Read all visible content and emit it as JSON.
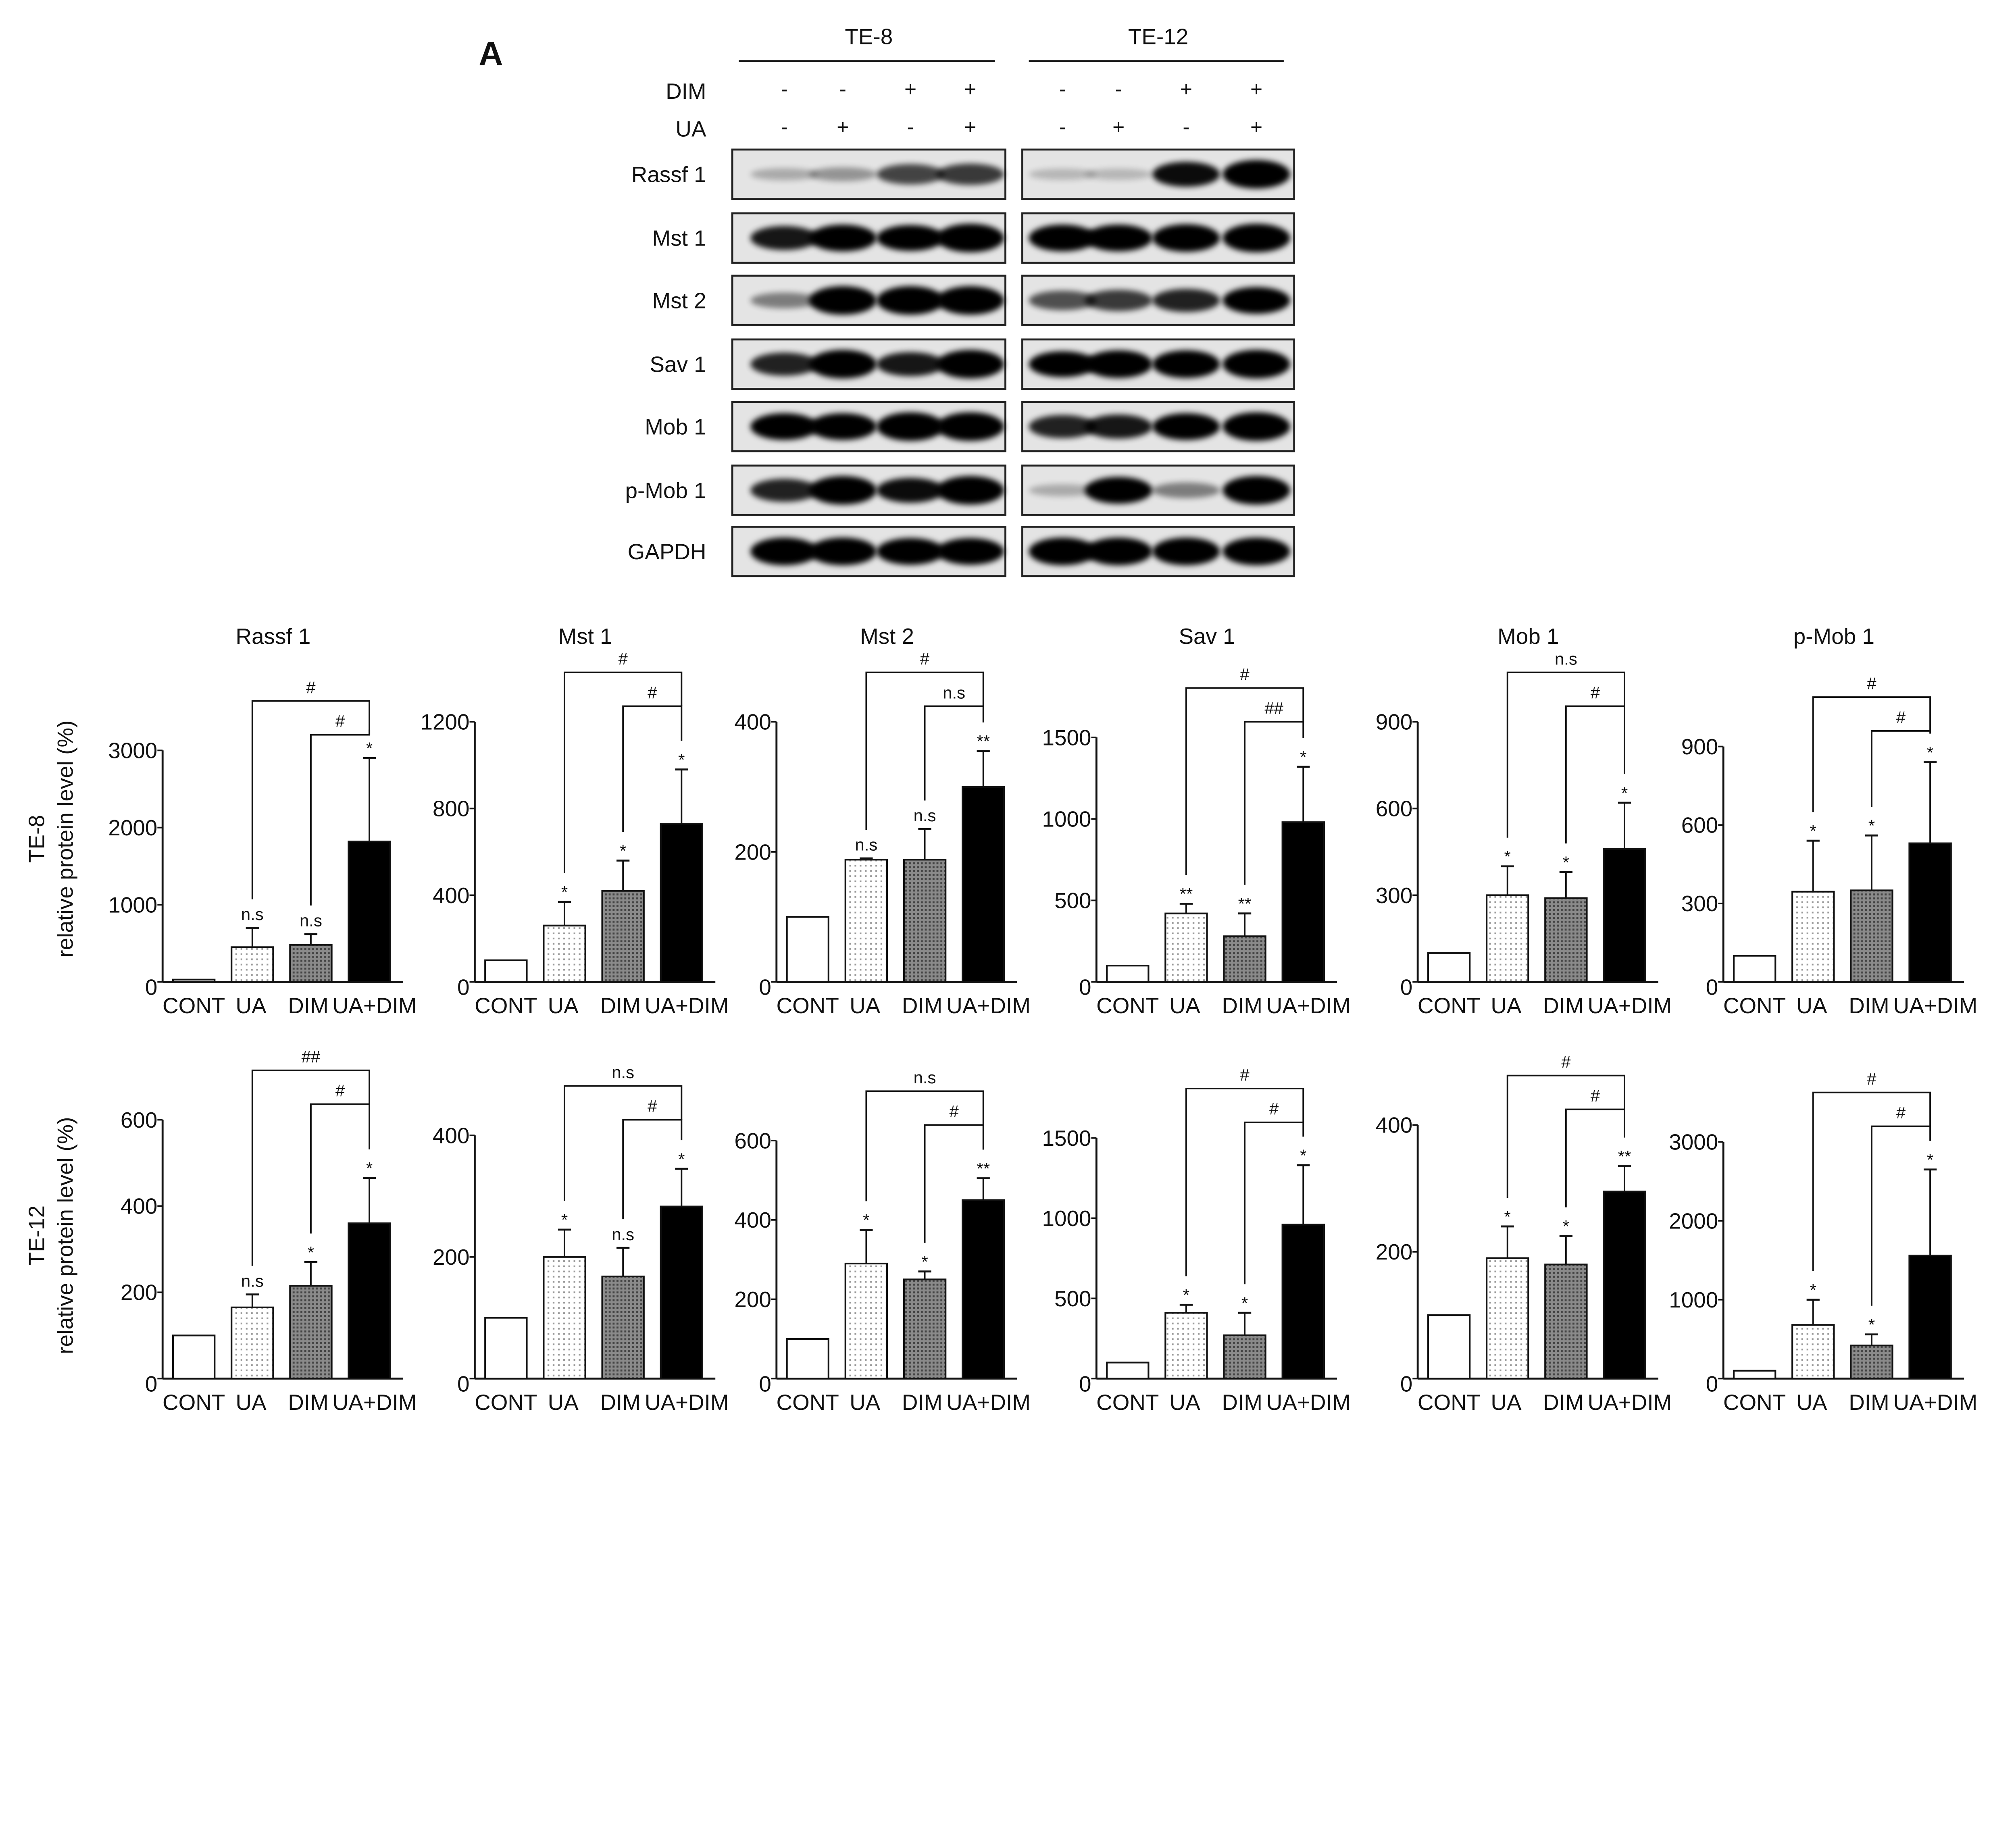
{
  "figure": {
    "panel_label": "A",
    "cell_lines": [
      "TE-8",
      "TE-12"
    ],
    "treatment_rows": [
      {
        "label": "DIM",
        "signs": [
          "-",
          "-",
          "+",
          "+",
          "-",
          "-",
          "+",
          "+"
        ]
      },
      {
        "label": "UA",
        "signs": [
          "-",
          "+",
          "-",
          "+",
          "-",
          "+",
          "-",
          "+"
        ]
      }
    ],
    "blot": {
      "rows": [
        {
          "label": "Rassf 1",
          "intensity": [
            0.1,
            0.2,
            0.55,
            0.6,
            0.05,
            0.05,
            0.8,
            1
          ]
        },
        {
          "label": "Mst 1",
          "intensity": [
            0.75,
            0.9,
            0.85,
            1,
            0.9,
            0.9,
            0.95,
            1
          ]
        },
        {
          "label": "Mst 2",
          "intensity": [
            0.3,
            1,
            1,
            1,
            0.5,
            0.6,
            0.7,
            0.9
          ]
        },
        {
          "label": "Sav 1",
          "intensity": [
            0.7,
            1,
            0.75,
            1,
            0.85,
            0.95,
            0.95,
            1
          ]
        },
        {
          "label": "Mob 1",
          "intensity": [
            0.9,
            0.9,
            1,
            1,
            0.7,
            0.75,
            0.9,
            1
          ]
        },
        {
          "label": "p-Mob 1",
          "intensity": [
            0.7,
            1,
            0.8,
            1,
            0.1,
            0.9,
            0.3,
            1
          ]
        },
        {
          "label": "GAPDH",
          "intensity": [
            0.95,
            0.95,
            0.9,
            0.9,
            0.95,
            0.95,
            0.95,
            0.95
          ]
        }
      ]
    },
    "row_ylabels": [
      {
        "line1": "TE-8",
        "line2": "relative protein level (%)"
      },
      {
        "line1": "TE-12",
        "line2": "relative protein level (%)"
      }
    ]
  },
  "chart_data": [
    {
      "type": "bar",
      "row": 0,
      "title": "Rassf 1",
      "categories": [
        "CONT",
        "UA",
        "DIM",
        "UA+DIM"
      ],
      "values": [
        30,
        450,
        480,
        1820
      ],
      "errors": [
        0,
        700,
        620,
        2900
      ],
      "ylim": [
        0,
        3000
      ],
      "yticks": [
        0,
        1000,
        2000,
        3000
      ],
      "bar_marks": [
        "",
        "n.s",
        "n.s",
        "*"
      ],
      "bracket_outer": "#",
      "bracket_inner": "#"
    },
    {
      "type": "bar",
      "row": 0,
      "title": "Mst 1",
      "categories": [
        "CONT",
        "UA",
        "DIM",
        "UA+DIM"
      ],
      "values": [
        100,
        260,
        420,
        730
      ],
      "errors": [
        0,
        370,
        560,
        980
      ],
      "ylim": [
        0,
        1200
      ],
      "yticks": [
        0,
        400,
        800,
        1200
      ],
      "bar_marks": [
        "",
        "*",
        "*",
        "*"
      ],
      "bracket_outer": "#",
      "bracket_inner": "#"
    },
    {
      "type": "bar",
      "row": 0,
      "title": "Mst 2",
      "categories": [
        "CONT",
        "UA",
        "DIM",
        "UA+DIM"
      ],
      "values": [
        100,
        188,
        188,
        300
      ],
      "errors": [
        0,
        190,
        235,
        355
      ],
      "ylim": [
        0,
        400
      ],
      "yticks": [
        0,
        200,
        400
      ],
      "bar_marks": [
        "",
        "n.s",
        "n.s",
        "**"
      ],
      "bracket_outer": "#",
      "bracket_inner": "n.s"
    },
    {
      "type": "bar",
      "row": 0,
      "title": "Sav 1",
      "categories": [
        "CONT",
        "UA",
        "DIM",
        "UA+DIM"
      ],
      "values": [
        100,
        420,
        280,
        980
      ],
      "errors": [
        0,
        480,
        420,
        1320
      ],
      "ylim": [
        0,
        1500
      ],
      "yticks": [
        0,
        500,
        1000,
        1500
      ],
      "bar_marks": [
        "",
        "**",
        "**",
        "*"
      ],
      "bracket_outer": "#",
      "bracket_inner": "##"
    },
    {
      "type": "bar",
      "row": 0,
      "title": "Mob 1",
      "categories": [
        "CONT",
        "UA",
        "DIM",
        "UA+DIM"
      ],
      "values": [
        100,
        300,
        290,
        460
      ],
      "errors": [
        0,
        400,
        380,
        620
      ],
      "ylim": [
        0,
        900
      ],
      "yticks": [
        0,
        300,
        600,
        900
      ],
      "bar_marks": [
        "",
        "*",
        "*",
        "*"
      ],
      "bracket_outer": "n.s",
      "bracket_inner": "#"
    },
    {
      "type": "bar",
      "row": 0,
      "title": "p-Mob 1",
      "categories": [
        "CONT",
        "UA",
        "DIM",
        "UA+DIM"
      ],
      "values": [
        100,
        345,
        350,
        530
      ],
      "errors": [
        0,
        540,
        560,
        840
      ],
      "ylim": [
        0,
        900
      ],
      "yticks": [
        0,
        300,
        600,
        900
      ],
      "bar_marks": [
        "",
        "*",
        "*",
        "*"
      ],
      "bracket_outer": "#",
      "bracket_inner": "#"
    },
    {
      "type": "bar",
      "row": 1,
      "title": "",
      "categories": [
        "CONT",
        "UA",
        "DIM",
        "UA+DIM"
      ],
      "values": [
        100,
        165,
        215,
        360
      ],
      "errors": [
        0,
        195,
        270,
        465
      ],
      "ylim": [
        0,
        600
      ],
      "yticks": [
        0,
        200,
        400,
        600
      ],
      "bar_marks": [
        "",
        "n.s",
        "*",
        "*"
      ],
      "bracket_outer": "##",
      "bracket_inner": "#"
    },
    {
      "type": "bar",
      "row": 1,
      "title": "",
      "categories": [
        "CONT",
        "UA",
        "DIM",
        "UA+DIM"
      ],
      "values": [
        100,
        200,
        168,
        283
      ],
      "errors": [
        0,
        245,
        215,
        345
      ],
      "ylim": [
        0,
        400
      ],
      "yticks": [
        0,
        200,
        400
      ],
      "bar_marks": [
        "",
        "*",
        "n.s",
        "*"
      ],
      "bracket_outer": "n.s",
      "bracket_inner": "#"
    },
    {
      "type": "bar",
      "row": 1,
      "title": "",
      "categories": [
        "CONT",
        "UA",
        "DIM",
        "UA+DIM"
      ],
      "values": [
        100,
        290,
        250,
        450
      ],
      "errors": [
        0,
        375,
        270,
        505
      ],
      "ylim": [
        0,
        600
      ],
      "yticks": [
        0,
        200,
        400,
        600
      ],
      "bar_marks": [
        "",
        "*",
        "*",
        "**"
      ],
      "bracket_outer": "n.s",
      "bracket_inner": "#"
    },
    {
      "type": "bar",
      "row": 1,
      "title": "",
      "categories": [
        "CONT",
        "UA",
        "DIM",
        "UA+DIM"
      ],
      "values": [
        100,
        410,
        270,
        960
      ],
      "errors": [
        0,
        460,
        410,
        1330
      ],
      "ylim": [
        0,
        1500
      ],
      "yticks": [
        0,
        500,
        1000,
        1500
      ],
      "bar_marks": [
        "",
        "*",
        "*",
        "*"
      ],
      "bracket_outer": "#",
      "bracket_inner": "#"
    },
    {
      "type": "bar",
      "row": 1,
      "title": "",
      "categories": [
        "CONT",
        "UA",
        "DIM",
        "UA+DIM"
      ],
      "values": [
        100,
        190,
        180,
        295
      ],
      "errors": [
        0,
        240,
        225,
        335
      ],
      "ylim": [
        0,
        400
      ],
      "yticks": [
        0,
        200,
        400
      ],
      "bar_marks": [
        "",
        "*",
        "*",
        "**"
      ],
      "bracket_outer": "#",
      "bracket_inner": "#"
    },
    {
      "type": "bar",
      "row": 1,
      "title": "",
      "categories": [
        "CONT",
        "UA",
        "DIM",
        "UA+DIM"
      ],
      "values": [
        100,
        680,
        420,
        1560
      ],
      "errors": [
        0,
        1000,
        560,
        2650
      ],
      "ylim": [
        0,
        3000
      ],
      "yticks": [
        0,
        1000,
        2000,
        3000
      ],
      "bar_marks": [
        "",
        "*",
        "*",
        "*"
      ],
      "bracket_outer": "#",
      "bracket_inner": "#"
    }
  ]
}
